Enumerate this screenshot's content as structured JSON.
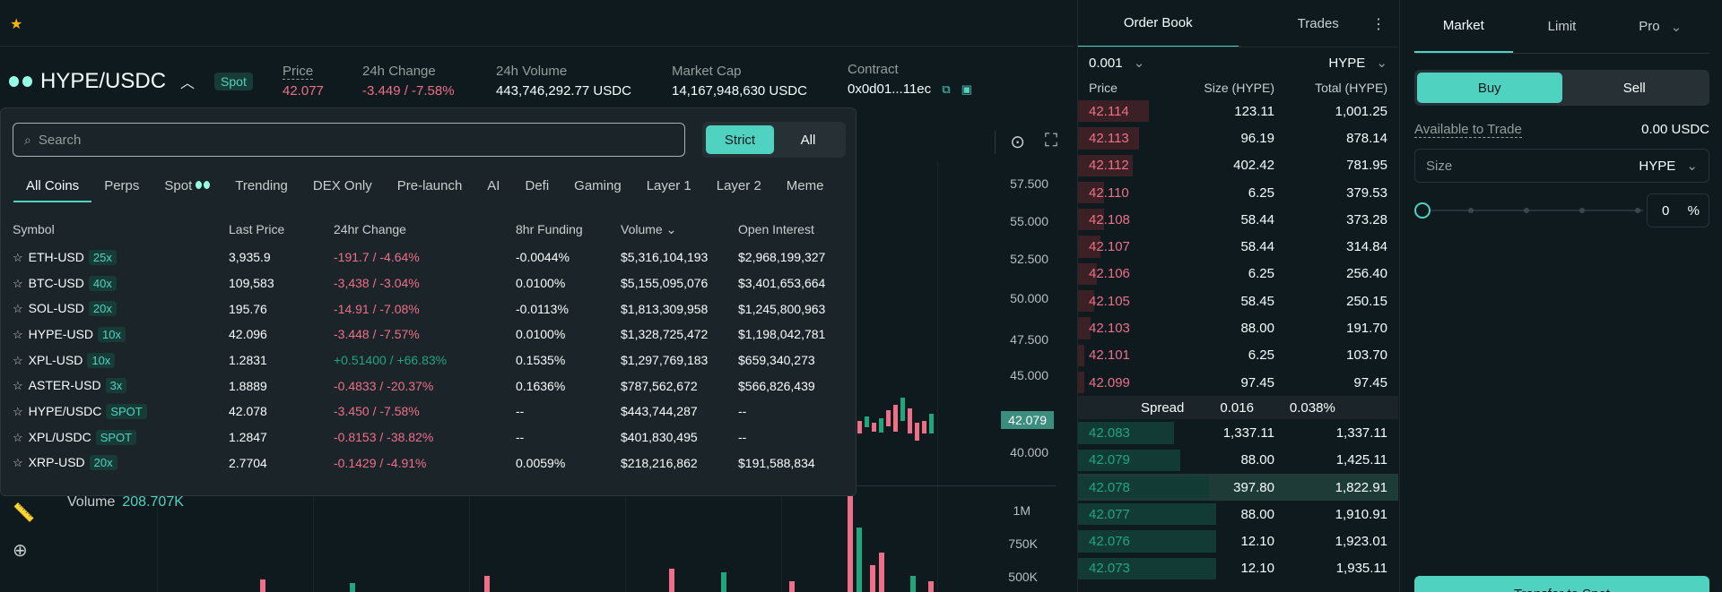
{
  "header": {
    "pair": "HYPE/USDC",
    "market_type": "Spot",
    "stats": {
      "price_label": "Price",
      "price": "42.077",
      "change_label": "24h Change",
      "change": "-3.449 / -7.58%",
      "volume_label": "24h Volume",
      "volume": "443,746,292.77 USDC",
      "mcap_label": "Market Cap",
      "mcap": "14,167,948,630 USDC",
      "contract_label": "Contract",
      "contract": "0x0d01...11ec"
    }
  },
  "search": {
    "placeholder": "Search",
    "strict_label": "Strict",
    "all_label": "All",
    "categories": [
      "All Coins",
      "Perps",
      "Spot",
      "Trending",
      "DEX Only",
      "Pre-launch",
      "AI",
      "Defi",
      "Gaming",
      "Layer 1",
      "Layer 2",
      "Meme"
    ],
    "columns": [
      "Symbol",
      "Last Price",
      "24hr Change",
      "8hr Funding",
      "Volume",
      "Open Interest"
    ],
    "rows": [
      {
        "symbol": "ETH-USD",
        "tag": "25x",
        "last": "3,935.9",
        "change": "-191.7 / -4.64%",
        "dir": "down",
        "funding": "-0.0044%",
        "volume": "$5,316,104,193",
        "oi": "$2,968,199,327"
      },
      {
        "symbol": "BTC-USD",
        "tag": "40x",
        "last": "109,583",
        "change": "-3,438 / -3.04%",
        "dir": "down",
        "funding": "0.0100%",
        "volume": "$5,155,095,076",
        "oi": "$3,401,653,664"
      },
      {
        "symbol": "SOL-USD",
        "tag": "20x",
        "last": "195.76",
        "change": "-14.91 / -7.08%",
        "dir": "down",
        "funding": "-0.0113%",
        "volume": "$1,813,309,958",
        "oi": "$1,245,800,963"
      },
      {
        "symbol": "HYPE-USD",
        "tag": "10x",
        "last": "42.096",
        "change": "-3.448 / -7.57%",
        "dir": "down",
        "funding": "0.0100%",
        "volume": "$1,328,725,472",
        "oi": "$1,198,042,781"
      },
      {
        "symbol": "XPL-USD",
        "tag": "10x",
        "last": "1.2831",
        "change": "+0.51400 / +66.83%",
        "dir": "up",
        "funding": "0.1535%",
        "volume": "$1,297,769,183",
        "oi": "$659,340,273"
      },
      {
        "symbol": "ASTER-USD",
        "tag": "3x",
        "last": "1.8889",
        "change": "-0.4833 / -20.37%",
        "dir": "down",
        "funding": "0.1636%",
        "volume": "$787,562,672",
        "oi": "$566,826,439"
      },
      {
        "symbol": "HYPE/USDC",
        "tag": "SPOT",
        "last": "42.078",
        "change": "-3.450 / -7.58%",
        "dir": "down",
        "funding": "--",
        "volume": "$443,744,287",
        "oi": "--"
      },
      {
        "symbol": "XPL/USDC",
        "tag": "SPOT",
        "last": "1.2847",
        "change": "-0.8153 / -38.82%",
        "dir": "down",
        "funding": "--",
        "volume": "$401,830,495",
        "oi": "--"
      },
      {
        "symbol": "XRP-USD",
        "tag": "20x",
        "last": "2.7704",
        "change": "-0.1429 / -4.91%",
        "dir": "down",
        "funding": "0.0059%",
        "volume": "$218,216,862",
        "oi": "$191,588,834"
      }
    ]
  },
  "chart": {
    "price_ticks": [
      "57.500",
      "55.000",
      "52.500",
      "50.000",
      "47.500",
      "45.000",
      "40.000"
    ],
    "last_price_tag": "42.079",
    "volume_label": "Volume",
    "volume_value": "208.707K",
    "volume_ticks": [
      "1M",
      "750K",
      "500K"
    ]
  },
  "orderbook": {
    "tabs": [
      "Order Book",
      "Trades"
    ],
    "tick_size": "0.001",
    "unit": "HYPE",
    "columns": [
      "Price",
      "Size (HYPE)",
      "Total (HYPE)"
    ],
    "asks": [
      {
        "price": "42.114",
        "size": "123.11",
        "total": "1,001.25",
        "depth": 0.22
      },
      {
        "price": "42.113",
        "size": "96.19",
        "total": "878.14",
        "depth": 0.19
      },
      {
        "price": "42.112",
        "size": "402.42",
        "total": "781.95",
        "depth": 0.17
      },
      {
        "price": "42.110",
        "size": "6.25",
        "total": "379.53",
        "depth": 0.08
      },
      {
        "price": "42.108",
        "size": "58.44",
        "total": "373.28",
        "depth": 0.08
      },
      {
        "price": "42.107",
        "size": "58.44",
        "total": "314.84",
        "depth": 0.07
      },
      {
        "price": "42.106",
        "size": "6.25",
        "total": "256.40",
        "depth": 0.06
      },
      {
        "price": "42.105",
        "size": "58.45",
        "total": "250.15",
        "depth": 0.05
      },
      {
        "price": "42.103",
        "size": "88.00",
        "total": "191.70",
        "depth": 0.04
      },
      {
        "price": "42.101",
        "size": "6.25",
        "total": "103.70",
        "depth": 0.02
      },
      {
        "price": "42.099",
        "size": "97.45",
        "total": "97.45",
        "depth": 0.02
      }
    ],
    "spread_label": "Spread",
    "spread_value": "0.016",
    "spread_pct": "0.038%",
    "bids": [
      {
        "price": "42.083",
        "size": "1,337.11",
        "total": "1,337.11",
        "depth": 0.3
      },
      {
        "price": "42.079",
        "size": "88.00",
        "total": "1,425.11",
        "depth": 0.32
      },
      {
        "price": "42.078",
        "size": "397.80",
        "total": "1,822.91",
        "depth": 0.41,
        "highlight": true
      },
      {
        "price": "42.077",
        "size": "88.00",
        "total": "1,910.91",
        "depth": 0.43
      },
      {
        "price": "42.076",
        "size": "12.10",
        "total": "1,923.01",
        "depth": 0.43
      },
      {
        "price": "42.073",
        "size": "12.10",
        "total": "1,935.11",
        "depth": 0.43
      }
    ]
  },
  "trade": {
    "tabs": [
      "Market",
      "Limit",
      "Pro"
    ],
    "buy_label": "Buy",
    "sell_label": "Sell",
    "available_label": "Available to Trade",
    "available_value": "0.00 USDC",
    "size_label": "Size",
    "size_unit": "HYPE",
    "percent_value": "0",
    "percent_unit": "%",
    "connect_label": "Transfer to Spot"
  },
  "colors": {
    "background": "#0f1a1f",
    "accent": "#50d2c1",
    "down": "#ed7088",
    "up": "#1fa67d"
  }
}
